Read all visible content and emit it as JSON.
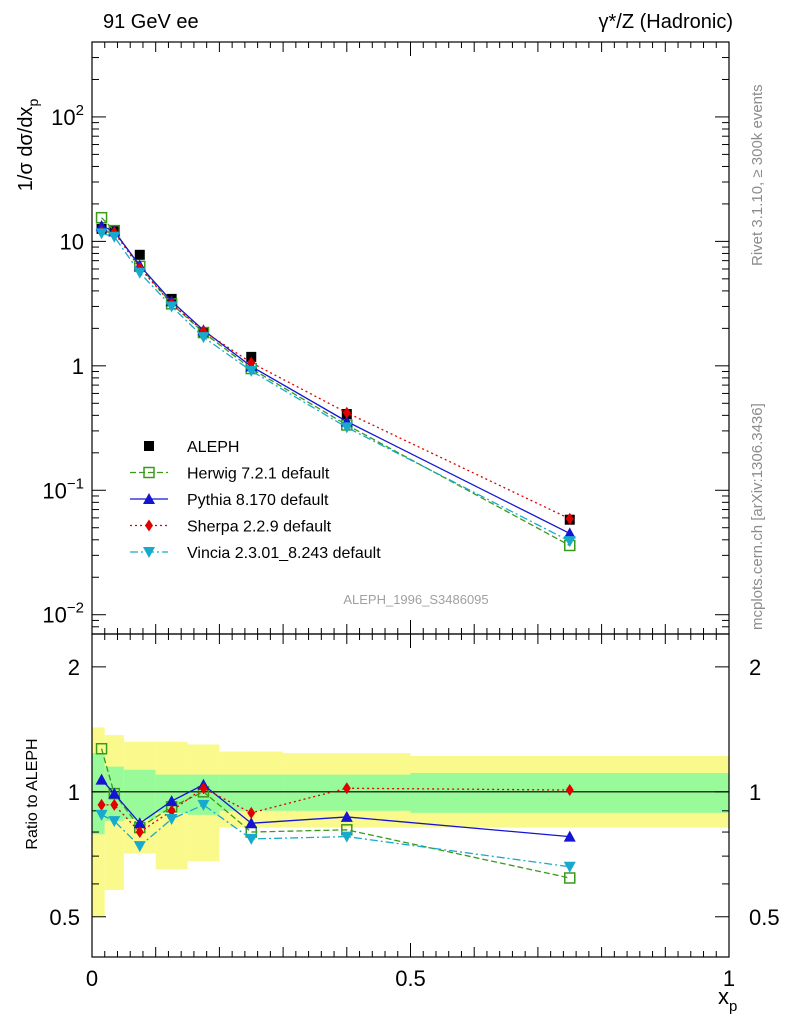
{
  "header": {
    "left": "91 GeV ee",
    "right": "γ*/Z (Hadronic)"
  },
  "side_text": {
    "rivet": "Rivet 3.1.10, ≥ 300k events",
    "url": "mcplots.cern.ch [arXiv:1306.3436]"
  },
  "watermark": "ALEPH_1996_S3486095",
  "chart_data": [
    {
      "type": "scatter",
      "title": "91 GeV ee — γ*/Z (Hadronic)",
      "ylabel_main": "1/σ dσ/dx",
      "ylabel_sub": "p",
      "xlabel_main": "x",
      "xlabel_sub": "p",
      "xlim": [
        0,
        1
      ],
      "ylim": [
        0.007,
        400
      ],
      "yscale": "log",
      "yticks": [
        {
          "label": "10",
          "exp": "−2",
          "value": 0.01
        },
        {
          "label": "10",
          "exp": "−1",
          "value": 0.1
        },
        {
          "label": "1",
          "exp": "",
          "value": 1
        },
        {
          "label": "10",
          "exp": "",
          "value": 10
        },
        {
          "label": "10",
          "exp": "2",
          "value": 100
        }
      ],
      "x": [
        0.015,
        0.035,
        0.075,
        0.125,
        0.175,
        0.25,
        0.4,
        0.75
      ],
      "series": [
        {
          "name": "ALEPH",
          "marker": "square-filled",
          "color": "#000000",
          "line": "none",
          "values": [
            12.6,
            12.3,
            7.8,
            3.45,
            1.85,
            1.18,
            0.41,
            0.058
          ]
        },
        {
          "name": "Herwig 7.2.1 default",
          "marker": "square-open",
          "color": "#3a9a1a",
          "line": "dashed",
          "values": [
            15.5,
            12.2,
            6.3,
            3.15,
            1.85,
            0.95,
            0.335,
            0.036
          ]
        },
        {
          "name": "Pythia 8.170 default",
          "marker": "triangle-up",
          "color": "#1414d2",
          "line": "solid",
          "values": [
            13.3,
            12.0,
            6.4,
            3.3,
            1.93,
            0.99,
            0.357,
            0.045
          ]
        },
        {
          "name": "Sherpa 2.2.9 default",
          "marker": "diamond",
          "color": "#e00000",
          "line": "dotted",
          "values": [
            12.0,
            11.8,
            6.1,
            3.15,
            1.9,
            1.06,
            0.42,
            0.059
          ]
        },
        {
          "name": "Vincia 2.3.01_8.243 default",
          "marker": "triangle-down",
          "color": "#18aacc",
          "line": "dashdot",
          "values": [
            11.6,
            10.9,
            5.6,
            3.0,
            1.7,
            0.91,
            0.32,
            0.039
          ]
        }
      ],
      "legend": "middle-left"
    },
    {
      "type": "scatter",
      "ylabel": "Ratio to ALEPH",
      "xlim": [
        0,
        1
      ],
      "ylim": [
        0.4,
        2.4
      ],
      "yscale": "log",
      "yticks": [
        {
          "label": "0.5",
          "value": 0.5
        },
        {
          "label": "1",
          "value": 1
        },
        {
          "label": "2",
          "value": 2
        }
      ],
      "xticks": [
        {
          "label": "0",
          "value": 0
        },
        {
          "label": "0.5",
          "value": 0.5
        },
        {
          "label": "1",
          "value": 1
        }
      ],
      "bands": {
        "bins": [
          [
            0,
            0.02
          ],
          [
            0.02,
            0.05
          ],
          [
            0.05,
            0.1
          ],
          [
            0.1,
            0.15
          ],
          [
            0.15,
            0.2
          ],
          [
            0.2,
            0.3
          ],
          [
            0.3,
            0.5
          ],
          [
            0.5,
            1.0
          ]
        ],
        "inner": [
          [
            0.79,
            1.24
          ],
          [
            0.85,
            1.15
          ],
          [
            0.86,
            1.13
          ],
          [
            0.89,
            1.1
          ],
          [
            0.88,
            1.1
          ],
          [
            0.9,
            1.1
          ],
          [
            0.9,
            1.1
          ],
          [
            0.89,
            1.11
          ]
        ],
        "outer": [
          [
            0.5,
            1.43
          ],
          [
            0.58,
            1.37
          ],
          [
            0.71,
            1.32
          ],
          [
            0.65,
            1.32
          ],
          [
            0.68,
            1.3
          ],
          [
            0.82,
            1.25
          ],
          [
            0.82,
            1.24
          ],
          [
            0.82,
            1.22
          ]
        ],
        "inner_color": "#98fa98",
        "outer_color": "#fafa8c"
      },
      "x": [
        0.015,
        0.035,
        0.075,
        0.125,
        0.175,
        0.25,
        0.4,
        0.75
      ],
      "series": [
        {
          "name": "Herwig 7.2.1 default",
          "color": "#3a9a1a",
          "line": "dashed",
          "marker": "square-open",
          "values": [
            1.27,
            0.99,
            0.82,
            0.92,
            1.0,
            0.8,
            0.81,
            0.62
          ]
        },
        {
          "name": "Pythia 8.170 default",
          "color": "#1414d2",
          "line": "solid",
          "marker": "triangle-up",
          "values": [
            1.07,
            0.99,
            0.84,
            0.95,
            1.04,
            0.84,
            0.87,
            0.78
          ]
        },
        {
          "name": "Sherpa 2.2.9 default",
          "color": "#e00000",
          "line": "dotted",
          "marker": "diamond",
          "values": [
            0.93,
            0.93,
            0.8,
            0.9,
            1.02,
            0.89,
            1.02,
            1.01
          ]
        },
        {
          "name": "Vincia 2.3.01_8.243 default",
          "color": "#18aacc",
          "line": "dashdot",
          "marker": "triangle-down",
          "values": [
            0.88,
            0.85,
            0.74,
            0.86,
            0.93,
            0.77,
            0.78,
            0.66
          ]
        }
      ]
    }
  ]
}
